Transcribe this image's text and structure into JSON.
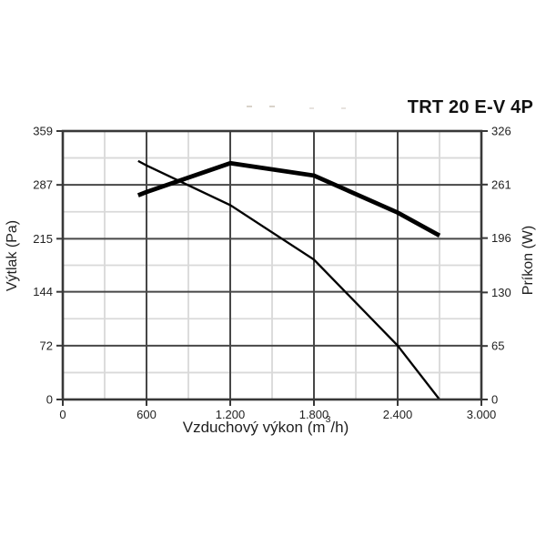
{
  "title": "TRT 20 E-V 4P",
  "chart_data": {
    "type": "line",
    "title": "TRT 20 E-V 4P",
    "xlabel": "Vzduchový výkon (m³/h)",
    "xlabel_parts": {
      "prefix": "Vzduchový výkon (m",
      "sup": "3",
      "suffix": "/h)"
    },
    "ylabel_left": "Výtlak (Pa)",
    "ylabel_right": "Príkon (W)",
    "x_axis": {
      "min": 0,
      "max": 3000,
      "major_ticks": [
        0,
        600,
        1200,
        1800,
        2400,
        3000
      ],
      "tick_labels": [
        "0",
        "600",
        "1.200",
        "1.800",
        "2.400",
        "3.000"
      ],
      "minor_step": 300
    },
    "y_axis_left": {
      "min": 0,
      "max": 359,
      "major_ticks": [
        0,
        72,
        144,
        215,
        287,
        359
      ],
      "tick_labels": [
        "0",
        "72",
        "144",
        "215",
        "287",
        "359"
      ]
    },
    "y_axis_right": {
      "min": 0,
      "max": 326,
      "major_ticks": [
        0,
        65,
        130,
        196,
        261,
        326
      ],
      "tick_labels": [
        "0",
        "65",
        "130",
        "196",
        "261",
        "326"
      ]
    },
    "grid": {
      "major": true,
      "minor": true
    },
    "legend": "none",
    "series": [
      {
        "name": "Výtlak (pressure curve, left axis, Pa)",
        "axis": "left",
        "style": "thin",
        "x": [
          540,
          600,
          1200,
          1800,
          2400,
          2700
        ],
        "y": [
          319,
          313,
          260,
          187,
          72,
          0
        ]
      },
      {
        "name": "Príkon (power curve, right axis, W)",
        "axis": "right",
        "style": "thick",
        "x": [
          540,
          600,
          1200,
          1800,
          2400,
          2700
        ],
        "y": [
          248,
          252,
          287,
          272,
          227,
          199
        ]
      }
    ]
  },
  "colors": {
    "background": "#ffffff",
    "axis_border": "#383838",
    "major_grid": "#474747",
    "minor_grid": "#d9d9d9",
    "curve": "#000000",
    "text": "#222222"
  }
}
